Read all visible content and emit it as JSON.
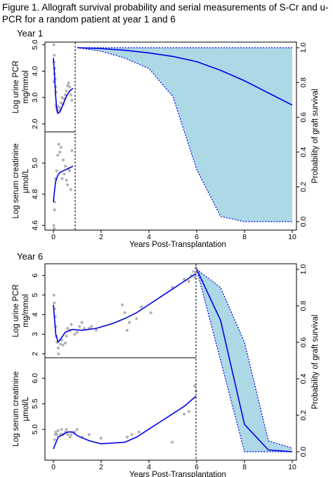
{
  "caption": "Figure 1. Allograft survival probability and serial measurements of S-Cr and u-PCR for a random patient at year 1 and 6",
  "chart_data": [
    {
      "type": "line",
      "title": "Year 1",
      "xlabel": "Years Post-Transplantation",
      "xlim": [
        0,
        10
      ],
      "xticks": [
        "0",
        "2",
        "4",
        "6",
        "8",
        "10"
      ],
      "landmark_year": 1,
      "upcr": {
        "ylabel": "Log urine PCR\nmg/mmol",
        "ylim": [
          1.7,
          5.1
        ],
        "yticks": [
          "2.0",
          "3.0",
          "4.0",
          "5.0"
        ],
        "fit_x": [
          0.0,
          0.05,
          0.1,
          0.15,
          0.2,
          0.3,
          0.45,
          0.6,
          0.75,
          0.9
        ],
        "fit_y": [
          4.5,
          3.9,
          3.1,
          2.6,
          2.4,
          2.45,
          2.75,
          3.05,
          3.25,
          3.35
        ],
        "points": [
          [
            0.02,
            5.0
          ],
          [
            0.04,
            4.6
          ],
          [
            0.03,
            4.35
          ],
          [
            0.06,
            4.1
          ],
          [
            0.05,
            3.9
          ],
          [
            0.08,
            3.7
          ],
          [
            0.1,
            3.4
          ],
          [
            0.12,
            3.2
          ],
          [
            0.12,
            2.7
          ],
          [
            0.15,
            2.6
          ],
          [
            0.18,
            2.5
          ],
          [
            0.22,
            2.65
          ],
          [
            0.28,
            2.5
          ],
          [
            0.32,
            2.6
          ],
          [
            0.35,
            2.8
          ],
          [
            0.4,
            3.0
          ],
          [
            0.45,
            2.75
          ],
          [
            0.5,
            2.95
          ],
          [
            0.55,
            3.1
          ],
          [
            0.6,
            3.25
          ],
          [
            0.65,
            3.45
          ],
          [
            0.7,
            3.55
          ],
          [
            0.75,
            3.4
          ],
          [
            0.8,
            3.1
          ],
          [
            0.85,
            2.9
          ],
          [
            0.02,
            3.6
          ]
        ]
      },
      "scr": {
        "ylabel": "Log serum creatinine\nμmol/L",
        "ylim": [
          4.57,
          5.2
        ],
        "yticks": [
          "4.6",
          "4.8",
          "5.0"
        ],
        "fit_x": [
          0.0,
          0.05,
          0.1,
          0.15,
          0.2,
          0.3,
          0.45,
          0.6,
          0.75,
          0.9
        ],
        "fit_y": [
          4.75,
          4.82,
          4.88,
          4.9,
          4.92,
          4.94,
          4.95,
          4.96,
          4.97,
          4.98
        ],
        "points": [
          [
            0.02,
            4.6
          ],
          [
            0.04,
            4.58
          ],
          [
            0.05,
            4.7
          ],
          [
            0.06,
            4.75
          ],
          [
            0.1,
            4.9
          ],
          [
            0.15,
            4.95
          ],
          [
            0.2,
            5.05
          ],
          [
            0.25,
            5.12
          ],
          [
            0.3,
            5.07
          ],
          [
            0.35,
            5.1
          ],
          [
            0.4,
            4.9
          ],
          [
            0.45,
            5.02
          ],
          [
            0.5,
            4.93
          ],
          [
            0.55,
            4.98
          ],
          [
            0.6,
            4.89
          ],
          [
            0.65,
            4.86
          ],
          [
            0.7,
            4.96
          ],
          [
            0.75,
            4.95
          ],
          [
            0.8,
            4.83
          ],
          [
            0.85,
            5.08
          ]
        ]
      },
      "survival": {
        "ylabel": "Probability of graft survival",
        "ylim": [
          -0.03,
          1.03
        ],
        "yticks": [
          "0.0",
          "0.2",
          "0.4",
          "0.6",
          "0.8",
          "1.0"
        ],
        "x": [
          1,
          2,
          3,
          4,
          5,
          6,
          7,
          8,
          9,
          10
        ],
        "y": [
          1.0,
          0.995,
          0.985,
          0.97,
          0.95,
          0.92,
          0.87,
          0.81,
          0.74,
          0.67
        ],
        "lower": [
          1.0,
          0.98,
          0.94,
          0.88,
          0.72,
          0.3,
          0.03,
          0.0,
          0.0,
          0.0
        ],
        "upper": [
          1.0,
          1.0,
          1.0,
          1.0,
          1.0,
          1.0,
          1.0,
          1.0,
          1.0,
          1.0
        ]
      }
    },
    {
      "type": "line",
      "title": "Year 6",
      "xlabel": "Years Post-Transplantation",
      "xlim": [
        0,
        10
      ],
      "xticks": [
        "0",
        "2",
        "4",
        "6",
        "8",
        "10"
      ],
      "landmark_year": 6,
      "upcr": {
        "ylabel": "Log urine PCR\nmg/mmol",
        "ylim": [
          1.8,
          6.6
        ],
        "yticks": [
          "2",
          "3",
          "4",
          "5",
          "6"
        ],
        "fit_x": [
          0.0,
          0.1,
          0.2,
          0.3,
          0.5,
          0.8,
          1.2,
          1.8,
          2.5,
          3.0,
          3.5,
          4.0,
          4.5,
          5.0,
          5.5,
          6.0
        ],
        "fit_y": [
          4.5,
          3.0,
          2.6,
          2.75,
          3.1,
          3.25,
          3.2,
          3.3,
          3.55,
          3.8,
          4.1,
          4.5,
          4.9,
          5.3,
          5.7,
          6.1
        ],
        "points": [
          [
            0.02,
            5.0
          ],
          [
            0.04,
            4.6
          ],
          [
            0.05,
            4.3
          ],
          [
            0.08,
            3.9
          ],
          [
            0.1,
            3.4
          ],
          [
            0.12,
            2.9
          ],
          [
            0.15,
            2.6
          ],
          [
            0.2,
            2.3
          ],
          [
            0.22,
            2.0
          ],
          [
            0.3,
            2.5
          ],
          [
            0.35,
            2.7
          ],
          [
            0.4,
            2.45
          ],
          [
            0.5,
            2.55
          ],
          [
            0.55,
            2.9
          ],
          [
            0.6,
            3.3
          ],
          [
            0.7,
            3.2
          ],
          [
            0.75,
            3.5
          ],
          [
            0.9,
            3.0
          ],
          [
            1.0,
            3.1
          ],
          [
            1.1,
            3.4
          ],
          [
            1.2,
            3.6
          ],
          [
            1.3,
            3.3
          ],
          [
            1.5,
            3.3
          ],
          [
            1.6,
            3.4
          ],
          [
            1.8,
            3.2
          ],
          [
            2.9,
            4.5
          ],
          [
            3.0,
            4.1
          ],
          [
            3.1,
            3.2
          ],
          [
            3.2,
            3.6
          ],
          [
            3.5,
            3.8
          ],
          [
            3.7,
            4.4
          ],
          [
            4.1,
            4.1
          ],
          [
            5.5,
            5.8
          ],
          [
            5.7,
            5.7
          ],
          [
            5.8,
            6.0
          ],
          [
            5.9,
            6.2
          ],
          [
            6.0,
            6.4
          ],
          [
            5.95,
            5.9
          ],
          [
            5.0,
            5.4
          ]
        ]
      },
      "scr": {
        "ylabel": "Log serum creatinine\nμmol/L",
        "ylim": [
          4.4,
          6.4
        ],
        "yticks": [
          "5.0",
          "5.5",
          "6.0"
        ],
        "fit_x": [
          0.0,
          0.2,
          0.4,
          0.6,
          0.8,
          1.0,
          1.5,
          2.0,
          3.0,
          3.5,
          4.0,
          4.5,
          5.0,
          5.5,
          6.0
        ],
        "fit_y": [
          4.62,
          4.85,
          4.9,
          4.95,
          4.95,
          4.88,
          4.78,
          4.72,
          4.75,
          4.85,
          5.0,
          5.15,
          5.3,
          5.45,
          5.65
        ],
        "points": [
          [
            0.05,
            4.8
          ],
          [
            0.08,
            4.9
          ],
          [
            0.1,
            4.95
          ],
          [
            0.15,
            4.9
          ],
          [
            0.2,
            4.98
          ],
          [
            0.3,
            4.9
          ],
          [
            0.35,
            5.0
          ],
          [
            0.4,
            4.9
          ],
          [
            0.5,
            4.95
          ],
          [
            0.55,
            5.0
          ],
          [
            0.6,
            4.9
          ],
          [
            0.7,
            4.85
          ],
          [
            0.75,
            4.9
          ],
          [
            0.9,
            4.95
          ],
          [
            1.0,
            5.0
          ],
          [
            1.2,
            4.85
          ],
          [
            1.5,
            4.9
          ],
          [
            2.0,
            4.83
          ],
          [
            3.1,
            4.85
          ],
          [
            3.3,
            4.9
          ],
          [
            3.6,
            4.95
          ],
          [
            5.0,
            4.75
          ],
          [
            5.5,
            5.3
          ],
          [
            5.7,
            5.35
          ],
          [
            6.0,
            5.75
          ],
          [
            5.95,
            5.85
          ]
        ]
      },
      "survival": {
        "ylabel": "Probability of graft survival",
        "ylim": [
          -0.03,
          1.03
        ],
        "yticks": [
          "0.0",
          "0.2",
          "0.4",
          "0.6",
          "0.8",
          "1.0"
        ],
        "x": [
          6,
          7,
          8,
          9,
          10
        ],
        "y": [
          1.0,
          0.72,
          0.15,
          0.01,
          0.0
        ],
        "lower": [
          1.0,
          0.5,
          0.0,
          0.0,
          0.0
        ],
        "upper": [
          1.0,
          0.9,
          0.6,
          0.06,
          0.02
        ]
      }
    }
  ],
  "colors": {
    "fit_line": "#0000e6",
    "points": "#b3b3b3",
    "band": "#add8e6",
    "band_edge": "#0000e6"
  }
}
